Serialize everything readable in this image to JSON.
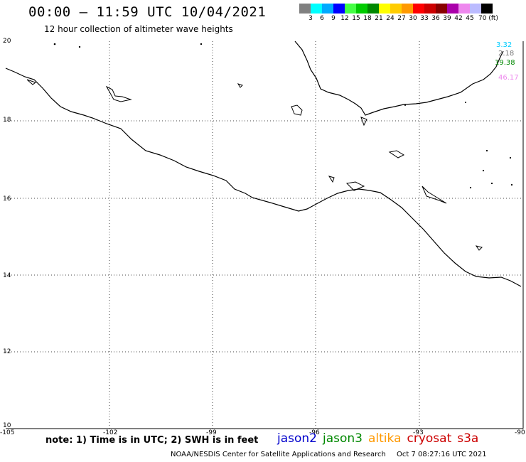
{
  "header": {
    "title": "00:00 – 11:59 UTC 10/04/2021",
    "subtitle": "12 hour collection of altimeter wave heights"
  },
  "colorbar": {
    "colors": [
      "#808080",
      "#00ffff",
      "#00aaff",
      "#0000ff",
      "#44ff44",
      "#00cc00",
      "#008800",
      "#ffff00",
      "#ffcc00",
      "#ff9900",
      "#ff0000",
      "#cc0000",
      "#880000",
      "#aa00aa",
      "#ee88ee",
      "#bbbbff",
      "#000000"
    ],
    "labels": [
      "3",
      "6",
      "9",
      "12",
      "15",
      "18",
      "21",
      "24",
      "27",
      "30",
      "33",
      "36",
      "39",
      "42",
      "45",
      "70 (ft)"
    ]
  },
  "map": {
    "lat_labels": [
      "20",
      "18",
      "16",
      "14",
      "12",
      "10"
    ],
    "lon_labels": [
      "-105",
      "-102",
      "-99",
      "-96",
      "-93",
      "-90"
    ],
    "grid": "dotted",
    "lat_range": [
      10,
      20
    ],
    "lon_range": [
      -105,
      -90
    ]
  },
  "swh_values": [
    {
      "text": "3.32",
      "color": "#00ccff"
    },
    {
      "text": "2.18",
      "color": "#777777"
    },
    {
      "text": "19.38",
      "color": "#008800"
    },
    {
      "text": "46.17",
      "color": "#ee88ee"
    }
  ],
  "legend": {
    "note": "note: 1) Time is in UTC; 2) SWH is in feet",
    "missions": [
      {
        "name": "jason2",
        "color": "#0000cc"
      },
      {
        "name": "jason3",
        "color": "#008800"
      },
      {
        "name": "altika",
        "color": "#ff9900"
      },
      {
        "name": "cryosat",
        "color": "#cc0000"
      },
      {
        "name": "s3a",
        "color": "#cc0000"
      }
    ]
  },
  "footer": {
    "credit": "NOAA/NESDIS Center for Satellite Applications and Research",
    "timestamp": "Oct  7 08:27:16 UTC 2021"
  }
}
